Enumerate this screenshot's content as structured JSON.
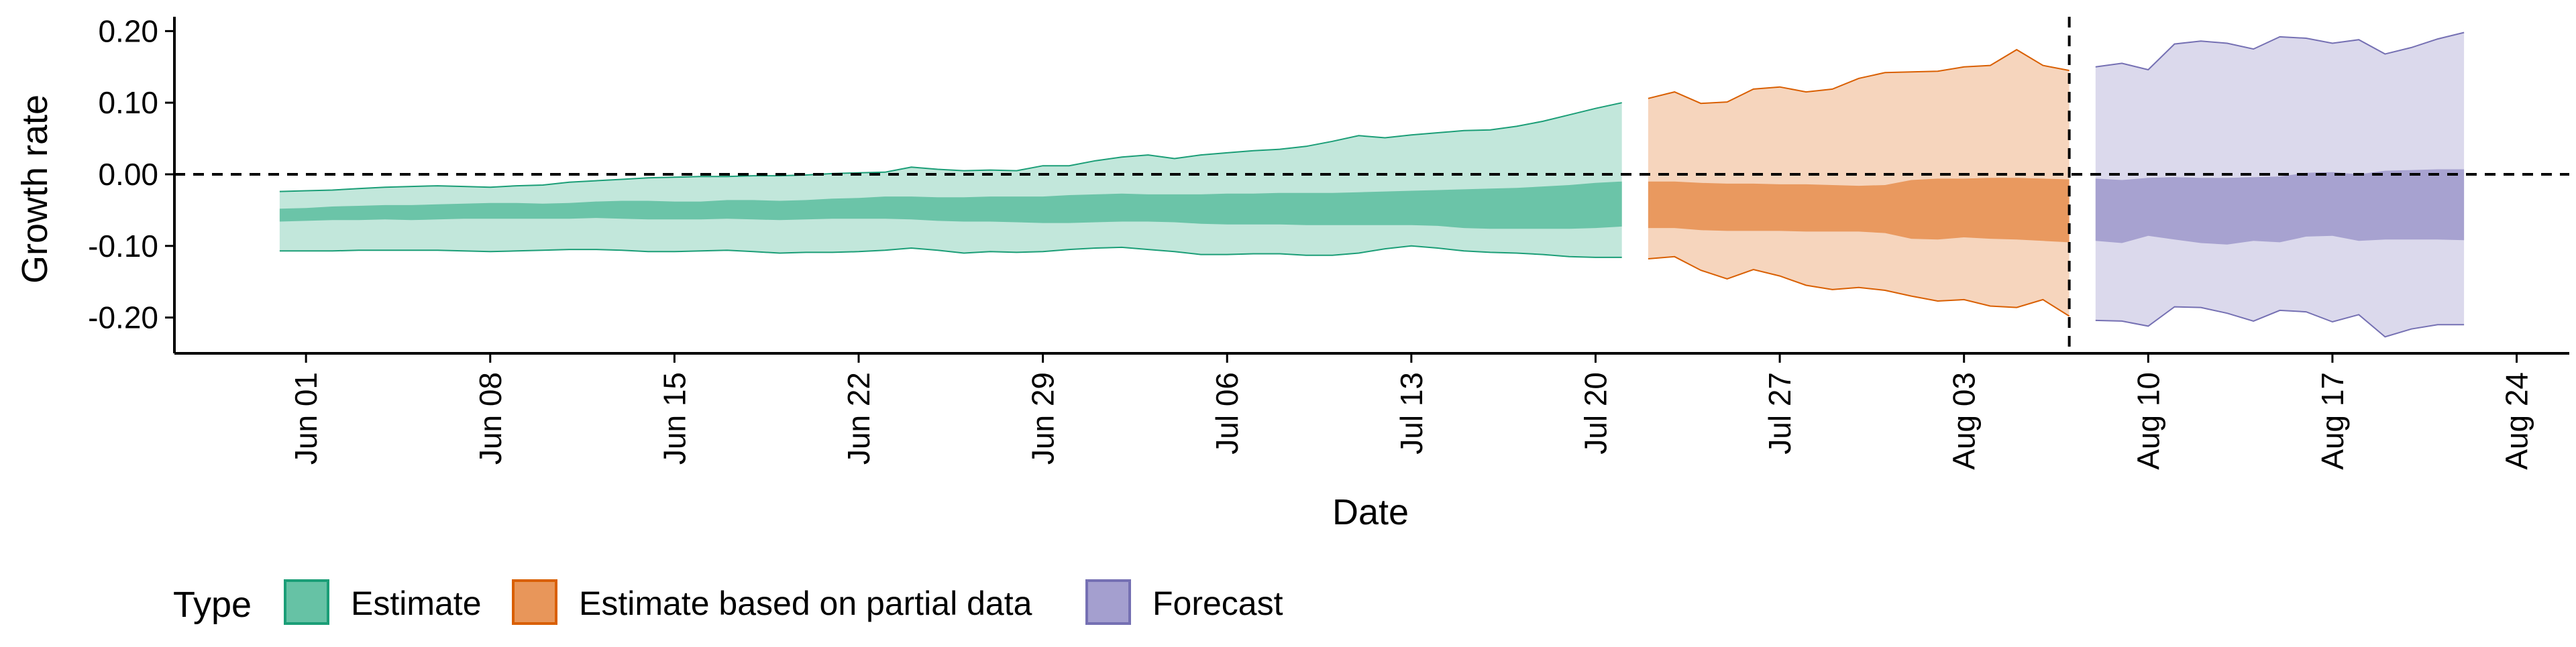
{
  "chart_data": {
    "type": "area",
    "title": "",
    "xlabel": "Date",
    "ylabel": "Growth rate",
    "xlim": [
      "2021-05-27",
      "2021-08-26"
    ],
    "ylim": [
      -0.25,
      0.22
    ],
    "x_ticks": [
      "2021-06-01",
      "2021-06-08",
      "2021-06-15",
      "2021-06-22",
      "2021-06-29",
      "2021-07-06",
      "2021-07-13",
      "2021-07-20",
      "2021-07-27",
      "2021-08-03",
      "2021-08-10",
      "2021-08-17",
      "2021-08-24"
    ],
    "x_tick_labels": [
      "Jun 01",
      "Jun 08",
      "Jun 15",
      "Jun 22",
      "Jun 29",
      "Jul 06",
      "Jul 13",
      "Jul 20",
      "Jul 27",
      "Aug 03",
      "Aug 10",
      "Aug 17",
      "Aug 24"
    ],
    "y_ticks": [
      -0.2,
      -0.1,
      0.0,
      0.1,
      0.2
    ],
    "y_tick_labels": [
      "-0.20",
      "-0.10",
      "0.00",
      "0.10",
      "0.20"
    ],
    "reference_lines": {
      "horizontal_y": 0.0,
      "vertical_x": "2021-08-07"
    },
    "grid": false,
    "legend": {
      "title": "Type",
      "position": "bottom-left",
      "entries": [
        "Estimate",
        "Estimate based on partial data",
        "Forecast"
      ]
    },
    "colors": {
      "Estimate": {
        "fill": "#66c2a5",
        "stroke": "#1b9e77"
      },
      "Estimate based on partial data": {
        "fill": "#e8965a",
        "stroke": "#d95f02"
      },
      "Forecast": {
        "fill": "#a49fcf",
        "stroke": "#7570b3"
      }
    },
    "series": [
      {
        "name": "Estimate",
        "x": [
          "2021-05-31",
          "2021-06-01",
          "2021-06-02",
          "2021-06-03",
          "2021-06-04",
          "2021-06-05",
          "2021-06-06",
          "2021-06-07",
          "2021-06-08",
          "2021-06-09",
          "2021-06-10",
          "2021-06-11",
          "2021-06-12",
          "2021-06-13",
          "2021-06-14",
          "2021-06-15",
          "2021-06-16",
          "2021-06-17",
          "2021-06-18",
          "2021-06-19",
          "2021-06-20",
          "2021-06-21",
          "2021-06-22",
          "2021-06-23",
          "2021-06-24",
          "2021-06-25",
          "2021-06-26",
          "2021-06-27",
          "2021-06-28",
          "2021-06-29",
          "2021-06-30",
          "2021-07-01",
          "2021-07-02",
          "2021-07-03",
          "2021-07-04",
          "2021-07-05",
          "2021-07-06",
          "2021-07-07",
          "2021-07-08",
          "2021-07-09",
          "2021-07-10",
          "2021-07-11",
          "2021-07-12",
          "2021-07-13",
          "2021-07-14",
          "2021-07-15",
          "2021-07-16",
          "2021-07-17",
          "2021-07-18",
          "2021-07-19",
          "2021-07-20",
          "2021-07-21"
        ],
        "lower90": [
          -0.107,
          -0.107,
          -0.107,
          -0.106,
          -0.106,
          -0.106,
          -0.106,
          -0.107,
          -0.108,
          -0.107,
          -0.106,
          -0.105,
          -0.105,
          -0.106,
          -0.108,
          -0.108,
          -0.107,
          -0.106,
          -0.108,
          -0.11,
          -0.109,
          -0.109,
          -0.108,
          -0.106,
          -0.103,
          -0.106,
          -0.11,
          -0.108,
          -0.109,
          -0.108,
          -0.105,
          -0.103,
          -0.102,
          -0.105,
          -0.108,
          -0.112,
          -0.112,
          -0.111,
          -0.111,
          -0.113,
          -0.113,
          -0.11,
          -0.104,
          -0.1,
          -0.103,
          -0.107,
          -0.109,
          -0.11,
          -0.112,
          -0.115,
          -0.116,
          -0.116
        ],
        "lower50": [
          -0.066,
          -0.065,
          -0.064,
          -0.064,
          -0.063,
          -0.064,
          -0.063,
          -0.062,
          -0.062,
          -0.062,
          -0.062,
          -0.062,
          -0.061,
          -0.062,
          -0.063,
          -0.063,
          -0.063,
          -0.062,
          -0.063,
          -0.064,
          -0.063,
          -0.062,
          -0.062,
          -0.062,
          -0.063,
          -0.065,
          -0.066,
          -0.066,
          -0.067,
          -0.068,
          -0.068,
          -0.067,
          -0.066,
          -0.066,
          -0.067,
          -0.069,
          -0.07,
          -0.07,
          -0.07,
          -0.071,
          -0.071,
          -0.071,
          -0.071,
          -0.071,
          -0.072,
          -0.075,
          -0.076,
          -0.076,
          -0.076,
          -0.076,
          -0.075,
          -0.073
        ],
        "upper50": [
          -0.048,
          -0.047,
          -0.045,
          -0.044,
          -0.043,
          -0.043,
          -0.042,
          -0.041,
          -0.04,
          -0.04,
          -0.041,
          -0.04,
          -0.038,
          -0.037,
          -0.037,
          -0.038,
          -0.038,
          -0.036,
          -0.036,
          -0.037,
          -0.036,
          -0.034,
          -0.033,
          -0.031,
          -0.031,
          -0.032,
          -0.032,
          -0.031,
          -0.031,
          -0.031,
          -0.029,
          -0.028,
          -0.027,
          -0.028,
          -0.028,
          -0.028,
          -0.027,
          -0.027,
          -0.026,
          -0.026,
          -0.026,
          -0.025,
          -0.024,
          -0.023,
          -0.022,
          -0.021,
          -0.02,
          -0.019,
          -0.017,
          -0.015,
          -0.012,
          -0.01
        ],
        "upper90": [
          -0.024,
          -0.023,
          -0.022,
          -0.02,
          -0.018,
          -0.017,
          -0.016,
          -0.017,
          -0.018,
          -0.016,
          -0.015,
          -0.011,
          -0.009,
          -0.007,
          -0.005,
          -0.004,
          -0.003,
          -0.003,
          -0.002,
          -0.002,
          -0.001,
          0.001,
          0.002,
          0.003,
          0.01,
          0.007,
          0.005,
          0.006,
          0.005,
          0.012,
          0.012,
          0.019,
          0.024,
          0.027,
          0.022,
          0.027,
          0.03,
          0.033,
          0.035,
          0.039,
          0.046,
          0.054,
          0.051,
          0.055,
          0.058,
          0.061,
          0.062,
          0.067,
          0.074,
          0.083,
          0.092,
          0.1
        ]
      },
      {
        "name": "Estimate based on partial data",
        "x": [
          "2021-07-22",
          "2021-07-23",
          "2021-07-24",
          "2021-07-25",
          "2021-07-26",
          "2021-07-27",
          "2021-07-28",
          "2021-07-29",
          "2021-07-30",
          "2021-07-31",
          "2021-08-01",
          "2021-08-02",
          "2021-08-03",
          "2021-08-04",
          "2021-08-05",
          "2021-08-06",
          "2021-08-07"
        ],
        "lower90": [
          -0.118,
          -0.115,
          -0.134,
          -0.146,
          -0.133,
          -0.142,
          -0.155,
          -0.161,
          -0.158,
          -0.162,
          -0.17,
          -0.177,
          -0.175,
          -0.184,
          -0.186,
          -0.175,
          -0.198
        ],
        "lower50": [
          -0.075,
          -0.075,
          -0.078,
          -0.079,
          -0.079,
          -0.079,
          -0.08,
          -0.08,
          -0.08,
          -0.082,
          -0.09,
          -0.091,
          -0.088,
          -0.09,
          -0.091,
          -0.093,
          -0.095
        ],
        "upper50": [
          -0.01,
          -0.01,
          -0.012,
          -0.013,
          -0.013,
          -0.014,
          -0.014,
          -0.015,
          -0.016,
          -0.015,
          -0.008,
          -0.006,
          -0.006,
          -0.005,
          -0.005,
          -0.006,
          -0.007
        ],
        "upper90": [
          0.106,
          0.115,
          0.099,
          0.101,
          0.119,
          0.122,
          0.115,
          0.119,
          0.134,
          0.142,
          0.143,
          0.144,
          0.15,
          0.152,
          0.174,
          0.152,
          0.145
        ]
      },
      {
        "name": "Forecast",
        "x": [
          "2021-08-08",
          "2021-08-09",
          "2021-08-10",
          "2021-08-11",
          "2021-08-12",
          "2021-08-13",
          "2021-08-14",
          "2021-08-15",
          "2021-08-16",
          "2021-08-17",
          "2021-08-18",
          "2021-08-19",
          "2021-08-20",
          "2021-08-21",
          "2021-08-22"
        ],
        "lower90": [
          -0.204,
          -0.205,
          -0.212,
          -0.185,
          -0.186,
          -0.194,
          -0.205,
          -0.19,
          -0.192,
          -0.206,
          -0.196,
          -0.227,
          -0.216,
          -0.21,
          -0.21
        ],
        "lower50": [
          -0.093,
          -0.096,
          -0.086,
          -0.091,
          -0.096,
          -0.098,
          -0.093,
          -0.095,
          -0.087,
          -0.086,
          -0.093,
          -0.091,
          -0.091,
          -0.091,
          -0.092
        ],
        "upper50": [
          -0.006,
          -0.008,
          -0.005,
          -0.004,
          -0.005,
          -0.005,
          -0.004,
          -0.003,
          0.002,
          0.003,
          0.0,
          0.005,
          0.006,
          0.007,
          0.007
        ],
        "upper90": [
          0.15,
          0.155,
          0.146,
          0.182,
          0.186,
          0.183,
          0.175,
          0.192,
          0.19,
          0.183,
          0.188,
          0.168,
          0.177,
          0.189,
          0.198
        ]
      }
    ]
  }
}
